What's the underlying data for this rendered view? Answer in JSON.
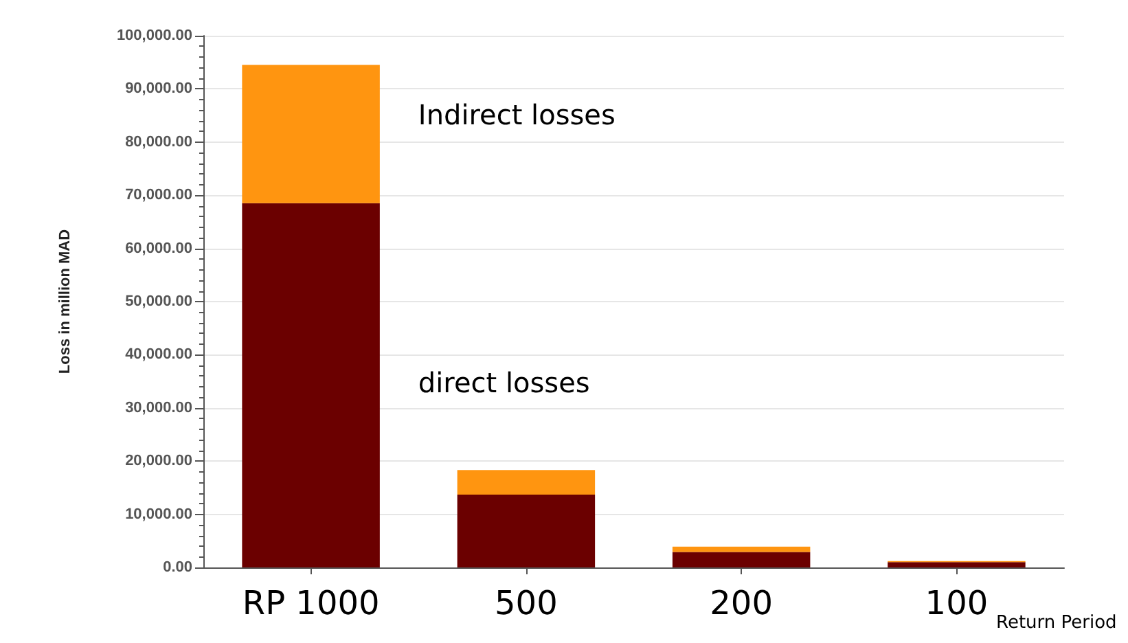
{
  "chart_data": {
    "type": "bar",
    "stacked": true,
    "ylabel": "Loss in million MAD",
    "xlabel": "Return Period",
    "categories": [
      "RP 1000",
      "500",
      "200",
      "100"
    ],
    "series": [
      {
        "name": "direct losses",
        "color": "#6b0000",
        "values": [
          68500,
          13700,
          2900,
          1000
        ]
      },
      {
        "name": "Indirect losses",
        "color": "#ff9510",
        "values": [
          26000,
          4600,
          1000,
          200
        ]
      }
    ],
    "ylim": [
      0,
      100000
    ],
    "yticks": [
      {
        "value": 0,
        "label": "0.00"
      },
      {
        "value": 10000,
        "label": "10,000.00"
      },
      {
        "value": 20000,
        "label": "20,000.00"
      },
      {
        "value": 30000,
        "label": "30,000.00"
      },
      {
        "value": 40000,
        "label": "40,000.00"
      },
      {
        "value": 50000,
        "label": "50,000.00"
      },
      {
        "value": 60000,
        "label": "60,000.00"
      },
      {
        "value": 70000,
        "label": "70,000.00"
      },
      {
        "value": 80000,
        "label": "80,000.00"
      },
      {
        "value": 90000,
        "label": "90,000.00"
      },
      {
        "value": 100000,
        "label": "100,000.00"
      }
    ],
    "grid": "y",
    "legend": false
  }
}
